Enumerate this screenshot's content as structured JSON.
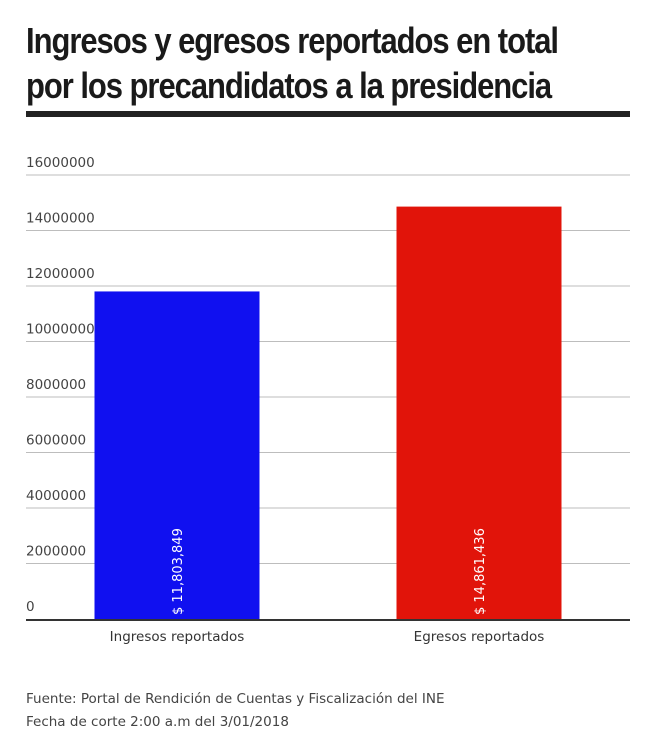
{
  "title_lines": [
    "Ingresos y egresos reportados en total",
    "por los precandidatos a la presidencia"
  ],
  "chart_data": {
    "type": "bar",
    "categories": [
      "Ingresos reportados",
      "Egresos reportados"
    ],
    "values": [
      11803849,
      14861436
    ],
    "data_labels": [
      "$ 11,803,849",
      "$ 14,861,436"
    ],
    "colors": [
      "#1010f0",
      "#e1140a"
    ],
    "ylim": [
      0,
      16000000
    ],
    "yticks": [
      0,
      2000000,
      4000000,
      6000000,
      8000000,
      10000000,
      12000000,
      14000000,
      16000000
    ],
    "ytick_labels": [
      "0",
      "2000000",
      "4000000",
      "6000000",
      "8000000",
      "10000000",
      "12000000",
      "14000000",
      "16000000"
    ],
    "grid": true,
    "xlabel": "",
    "ylabel": ""
  },
  "source_lines": [
    "Fuente: Portal de Rendición de Cuentas y Fiscalización del INE",
    "Fecha de corte 2:00 a.m del 3/01/2018"
  ]
}
